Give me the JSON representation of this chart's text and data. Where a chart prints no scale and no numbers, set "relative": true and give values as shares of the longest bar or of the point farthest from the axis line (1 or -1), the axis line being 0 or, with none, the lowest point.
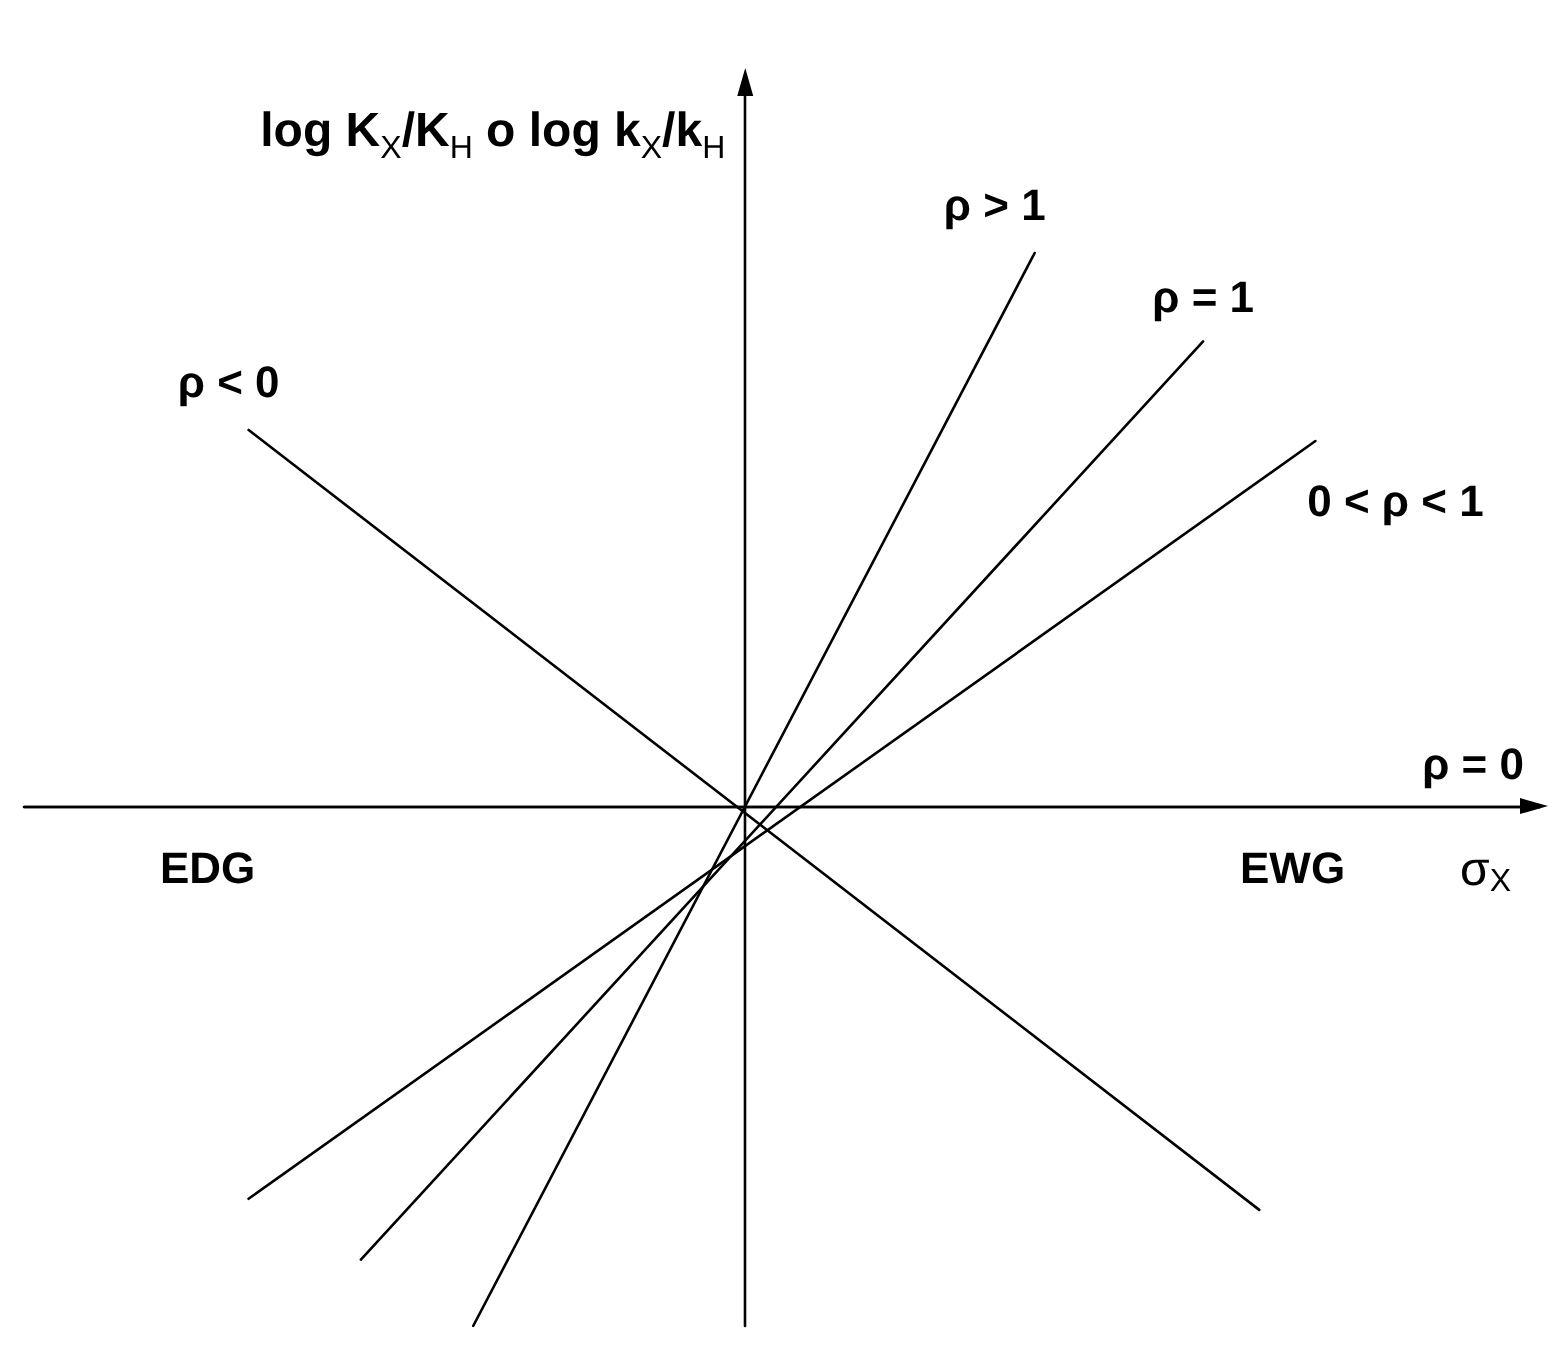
{
  "chart_data": {
    "type": "line",
    "relative": true,
    "xlabel": "σ$_{X}$",
    "ylabel": "log K$_{X}$/K$_{H}$ o log k$_{X}$/k$_{H}$",
    "categories": [
      null,
      null,
      null,
      null,
      null,
      null,
      null,
      null,
      null,
      null,
      null,
      null,
      null,
      null,
      null,
      null,
      null,
      null,
      null,
      null,
      null,
      null,
      null,
      null,
      null,
      null,
      null,
      null
    ],
    "grid": false,
    "legend": false,
    "marker": "none",
    "line_style": "solid",
    "annotations": [
      "EDG",
      "EWG"
    ],
    "series": [
      {
        "name": "ρ > 1",
        "color": "#000000",
        "values": [
          null,
          null,
          null,
          null,
          null,
          null,
          null,
          null,
          -0.94,
          null,
          null,
          null,
          null,
          null,
          null,
          null,
          null,
          null,
          1,
          null,
          null,
          null,
          null,
          null,
          null,
          null,
          null,
          null
        ]
      },
      {
        "name": "ρ = 1",
        "color": "#000000",
        "values": [
          null,
          null,
          null,
          null,
          null,
          null,
          -0.82,
          null,
          null,
          null,
          null,
          null,
          null,
          null,
          null,
          null,
          null,
          null,
          null,
          null,
          null,
          0.84,
          null,
          null,
          null,
          null,
          null,
          null
        ]
      },
      {
        "name": "0 < ρ < 1",
        "color": "#000000",
        "values": [
          null,
          null,
          null,
          null,
          -0.71,
          null,
          null,
          null,
          null,
          null,
          null,
          null,
          null,
          null,
          null,
          null,
          null,
          null,
          null,
          null,
          null,
          null,
          null,
          0.66,
          null,
          null,
          null,
          null
        ]
      },
      {
        "name": "ρ < 0",
        "color": "#000000",
        "values": [
          null,
          null,
          null,
          null,
          0.68,
          null,
          null,
          null,
          null,
          null,
          null,
          null,
          null,
          null,
          null,
          null,
          null,
          null,
          null,
          null,
          null,
          null,
          -0.73,
          null,
          null,
          null,
          null,
          null
        ]
      }
    ],
    "ref_lines": [
      {
        "axis": "y",
        "value": 0,
        "label": "ρ = 0",
        "color": "#000000"
      }
    ]
  }
}
